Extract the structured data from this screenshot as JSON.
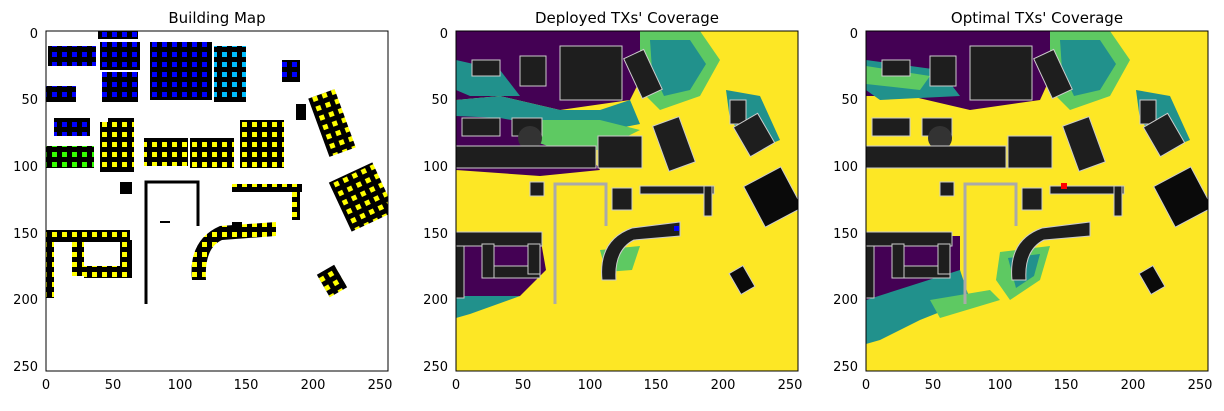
{
  "chart_data": [
    {
      "type": "heatmap",
      "title": "Building Map",
      "xlabel": "",
      "ylabel": "",
      "xlim": [
        0,
        256
      ],
      "ylim": [
        256,
        0
      ],
      "xticks": [
        "0",
        "50",
        "100",
        "150",
        "200",
        "250"
      ],
      "yticks": [
        "0",
        "50",
        "100",
        "150",
        "200",
        "250"
      ],
      "background": "#ffffff",
      "marker_colors": [
        "#0000ff",
        "#00bfff",
        "#33ff00",
        "#ffff00"
      ]
    },
    {
      "type": "heatmap",
      "title": "Deployed TXs' Coverage",
      "xlabel": "",
      "ylabel": "",
      "xlim": [
        0,
        256
      ],
      "ylim": [
        256,
        0
      ],
      "xticks": [
        "0",
        "50",
        "100",
        "150",
        "200",
        "250"
      ],
      "yticks": [
        "0",
        "50",
        "100",
        "150",
        "200",
        "250"
      ],
      "colormap": [
        "#440154",
        "#21918c",
        "#5ec962",
        "#fde725"
      ],
      "transmitter_color": "#0000ff"
    },
    {
      "type": "heatmap",
      "title": "Optimal TXs' Coverage",
      "xlabel": "",
      "ylabel": "",
      "xlim": [
        0,
        256
      ],
      "ylim": [
        256,
        0
      ],
      "xticks": [
        "0",
        "50",
        "100",
        "150",
        "200",
        "250"
      ],
      "yticks": [
        "0",
        "50",
        "100",
        "150",
        "200",
        "250"
      ],
      "colormap": [
        "#440154",
        "#21918c",
        "#5ec962",
        "#fde725"
      ],
      "transmitter_color": "#ff0000"
    }
  ]
}
